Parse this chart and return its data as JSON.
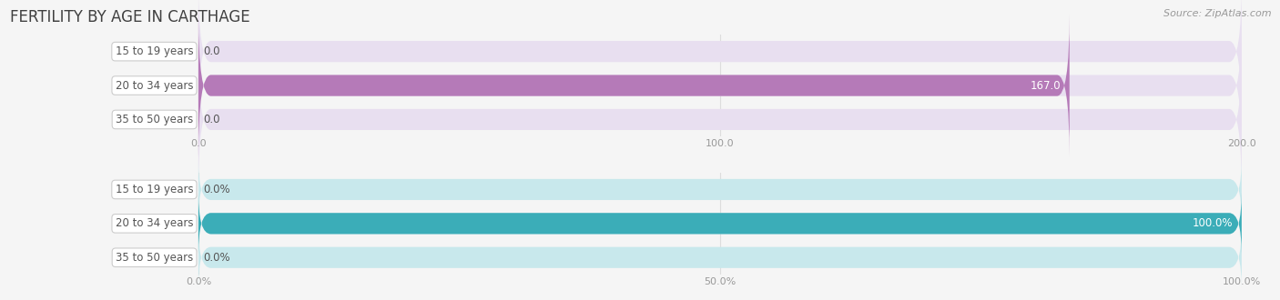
{
  "title": "FERTILITY BY AGE IN CARTHAGE",
  "source": "Source: ZipAtlas.com",
  "top_chart": {
    "categories": [
      "15 to 19 years",
      "20 to 34 years",
      "35 to 50 years"
    ],
    "values": [
      0.0,
      167.0,
      0.0
    ],
    "xlim": [
      0,
      200.0
    ],
    "xticks": [
      0.0,
      100.0,
      200.0
    ],
    "xtick_labels": [
      "0.0",
      "100.0",
      "200.0"
    ],
    "bar_color": "#b57ab8",
    "bar_bg_color": "#e8dff0",
    "bar_height": 0.62,
    "value_labels": [
      "0.0",
      "167.0",
      "0.0"
    ]
  },
  "bottom_chart": {
    "categories": [
      "15 to 19 years",
      "20 to 34 years",
      "35 to 50 years"
    ],
    "values": [
      0.0,
      100.0,
      0.0
    ],
    "xlim": [
      0,
      100.0
    ],
    "xticks": [
      0.0,
      50.0,
      100.0
    ],
    "xtick_labels": [
      "0.0%",
      "50.0%",
      "100.0%"
    ],
    "bar_color": "#3badb8",
    "bar_bg_color": "#c8e8ec",
    "bar_height": 0.62,
    "value_labels": [
      "0.0%",
      "100.0%",
      "0.0%"
    ]
  },
  "label_bg_color": "#ffffff",
  "label_text_color": "#555555",
  "background_color": "#f5f5f5",
  "title_color": "#404040",
  "source_color": "#999999",
  "axis_line_color": "#dddddd",
  "tick_color": "#999999",
  "label_fontsize": 8.5,
  "value_fontsize": 8.5,
  "tick_fontsize": 8.0
}
